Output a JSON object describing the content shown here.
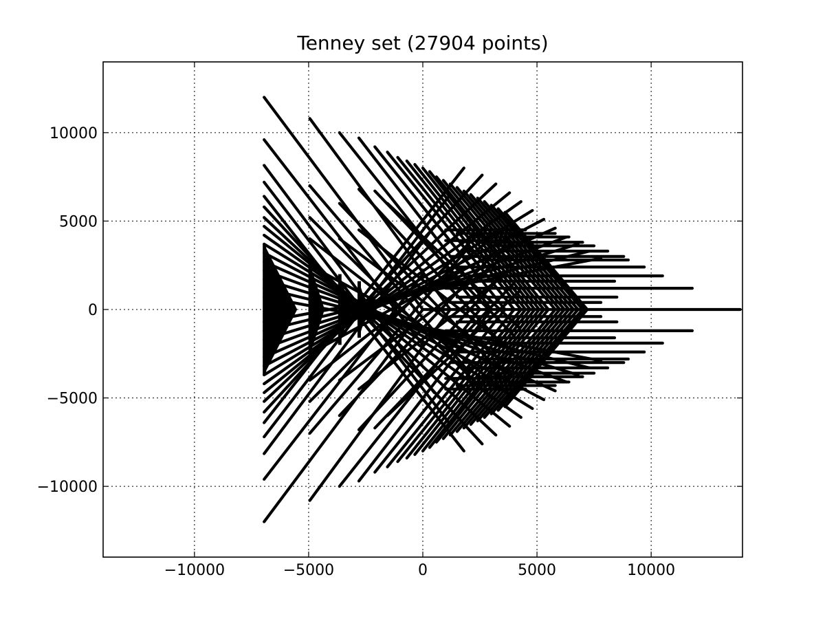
{
  "chart_data": {
    "type": "scatter",
    "title": "Tenney set (27904 points)",
    "xlabel": "",
    "ylabel": "",
    "xlim": [
      -14000,
      14000
    ],
    "ylim": [
      -14000,
      14000
    ],
    "xticks": [
      -10000,
      -5000,
      0,
      5000,
      10000
    ],
    "yticks": [
      -10000,
      -5000,
      0,
      5000,
      10000
    ],
    "xtick_labels": [
      "−10000",
      "−5000",
      "0",
      "5000",
      "10000"
    ],
    "ytick_labels": [
      "−10000",
      "−5000",
      "0",
      "5000",
      "10000"
    ],
    "grid": true,
    "marker_color": "#000000",
    "spine_color": "#000000",
    "segments": [
      {
        "x1": -6950,
        "y1": 12000,
        "x2": 0,
        "y2": 0
      },
      {
        "x1": -6950,
        "y1": -12000,
        "x2": 0,
        "y2": 0
      },
      {
        "x1": -6950,
        "y1": 9600,
        "x2": 0,
        "y2": -2000
      },
      {
        "x1": -6950,
        "y1": -9600,
        "x2": 0,
        "y2": 2000
      },
      {
        "x1": -6950,
        "y1": 8150,
        "x2": 500,
        "y2": -4700
      },
      {
        "x1": -6950,
        "y1": -8150,
        "x2": 500,
        "y2": 4700
      },
      {
        "x1": -6950,
        "y1": 7200,
        "x2": 1200,
        "y2": -6500
      },
      {
        "x1": -6950,
        "y1": -7200,
        "x2": 1200,
        "y2": 6500
      },
      {
        "x1": -6950,
        "y1": 6400,
        "x2": 1800,
        "y2": -8000
      },
      {
        "x1": -6950,
        "y1": -6400,
        "x2": 1800,
        "y2": 8000
      },
      {
        "x1": -6950,
        "y1": 5800,
        "x2": 2600,
        "y2": -7600
      },
      {
        "x1": -6950,
        "y1": -5800,
        "x2": 2600,
        "y2": 7600
      },
      {
        "x1": -6950,
        "y1": 5200,
        "x2": 3200,
        "y2": -7100
      },
      {
        "x1": -6950,
        "y1": -5200,
        "x2": 3200,
        "y2": 7100
      },
      {
        "x1": -6950,
        "y1": 4700,
        "x2": 3800,
        "y2": -6600
      },
      {
        "x1": -6950,
        "y1": -4700,
        "x2": 3800,
        "y2": 6600
      },
      {
        "x1": -6950,
        "y1": 4200,
        "x2": 4300,
        "y2": -6100
      },
      {
        "x1": -6950,
        "y1": -4200,
        "x2": 4300,
        "y2": 6100
      },
      {
        "x1": -6950,
        "y1": 3700,
        "x2": 4800,
        "y2": -5600
      },
      {
        "x1": -6950,
        "y1": -3700,
        "x2": 4800,
        "y2": 5600
      },
      {
        "x1": -6950,
        "y1": 3200,
        "x2": 5300,
        "y2": -5100
      },
      {
        "x1": -6950,
        "y1": -3200,
        "x2": 5300,
        "y2": 5100
      },
      {
        "x1": -6950,
        "y1": 2700,
        "x2": 5800,
        "y2": -4600
      },
      {
        "x1": -6950,
        "y1": -2700,
        "x2": 5800,
        "y2": 4600
      },
      {
        "x1": -6950,
        "y1": 2200,
        "x2": 6300,
        "y2": -4100
      },
      {
        "x1": -6950,
        "y1": -2200,
        "x2": 6300,
        "y2": 4100
      },
      {
        "x1": -6950,
        "y1": 1700,
        "x2": 6800,
        "y2": -3700
      },
      {
        "x1": -6950,
        "y1": -1700,
        "x2": 6800,
        "y2": 3700
      },
      {
        "x1": -6950,
        "y1": 1200,
        "x2": 7300,
        "y2": -3300
      },
      {
        "x1": -6950,
        "y1": -1200,
        "x2": 7300,
        "y2": 3300
      },
      {
        "x1": -6950,
        "y1": 700,
        "x2": 7800,
        "y2": -2900
      },
      {
        "x1": -6950,
        "y1": -700,
        "x2": 7800,
        "y2": 2900
      },
      {
        "x1": -4950,
        "y1": 10800,
        "x2": 1200,
        "y2": 0
      },
      {
        "x1": -4950,
        "y1": -10800,
        "x2": 1200,
        "y2": 0
      },
      {
        "x1": -4950,
        "y1": 7000,
        "x2": 2000,
        "y2": -3500
      },
      {
        "x1": -4950,
        "y1": -7000,
        "x2": 2000,
        "y2": 3500
      },
      {
        "x1": -4950,
        "y1": 5200,
        "x2": 3000,
        "y2": -5000
      },
      {
        "x1": -4950,
        "y1": -5200,
        "x2": 3000,
        "y2": 5000
      },
      {
        "x1": -4950,
        "y1": 4000,
        "x2": 3500,
        "y2": -4500
      },
      {
        "x1": -4950,
        "y1": -4000,
        "x2": 3500,
        "y2": 4500
      },
      {
        "x1": -4950,
        "y1": 2500,
        "x2": 4000,
        "y2": -3800
      },
      {
        "x1": -4950,
        "y1": -2500,
        "x2": 4000,
        "y2": 3800
      },
      {
        "x1": -3650,
        "y1": 10000,
        "x2": 2500,
        "y2": 0
      },
      {
        "x1": -3650,
        "y1": -10000,
        "x2": 2500,
        "y2": 0
      },
      {
        "x1": -3650,
        "y1": 6000,
        "x2": 3000,
        "y2": -3000
      },
      {
        "x1": -3650,
        "y1": -6000,
        "x2": 3000,
        "y2": 3000
      },
      {
        "x1": -3650,
        "y1": 4000,
        "x2": 3600,
        "y2": -3000
      },
      {
        "x1": -3650,
        "y1": -4000,
        "x2": 3600,
        "y2": 3000
      },
      {
        "x1": -2800,
        "y1": 9700,
        "x2": 3000,
        "y2": 0
      },
      {
        "x1": -2800,
        "y1": -9700,
        "x2": 3000,
        "y2": 0
      },
      {
        "x1": -2800,
        "y1": 6800,
        "x2": 3500,
        "y2": -2000
      },
      {
        "x1": -2800,
        "y1": -6800,
        "x2": 3500,
        "y2": 2000
      },
      {
        "x1": -2800,
        "y1": 4500,
        "x2": 3800,
        "y2": -2200
      },
      {
        "x1": -2800,
        "y1": -4500,
        "x2": 3800,
        "y2": 2200
      },
      {
        "x1": -2100,
        "y1": 9200,
        "x2": 3600,
        "y2": 0
      },
      {
        "x1": -2100,
        "y1": -9200,
        "x2": 3600,
        "y2": 0
      },
      {
        "x1": -2100,
        "y1": 6700,
        "x2": 4000,
        "y2": -1500
      },
      {
        "x1": -2100,
        "y1": -6700,
        "x2": 4000,
        "y2": 1500
      },
      {
        "x1": -1550,
        "y1": 8900,
        "x2": 4000,
        "y2": 0
      },
      {
        "x1": -1550,
        "y1": -8900,
        "x2": 4000,
        "y2": 0
      },
      {
        "x1": -1550,
        "y1": 6000,
        "x2": 4200,
        "y2": -1000
      },
      {
        "x1": -1550,
        "y1": -6000,
        "x2": 4200,
        "y2": 1000
      },
      {
        "x1": -1100,
        "y1": 8600,
        "x2": 4300,
        "y2": 0
      },
      {
        "x1": -1100,
        "y1": -8600,
        "x2": 4300,
        "y2": 0
      },
      {
        "x1": -700,
        "y1": 8400,
        "x2": 4500,
        "y2": 0
      },
      {
        "x1": -700,
        "y1": -8400,
        "x2": 4500,
        "y2": 0
      },
      {
        "x1": -350,
        "y1": 8200,
        "x2": 4700,
        "y2": 0
      },
      {
        "x1": -350,
        "y1": -8200,
        "x2": 4700,
        "y2": 0
      },
      {
        "x1": 0,
        "y1": 8000,
        "x2": 4900,
        "y2": 0
      },
      {
        "x1": 0,
        "y1": -8000,
        "x2": 4900,
        "y2": 0
      },
      {
        "x1": 300,
        "y1": 7800,
        "x2": 5100,
        "y2": 0
      },
      {
        "x1": 300,
        "y1": -7800,
        "x2": 5100,
        "y2": 0
      },
      {
        "x1": 600,
        "y1": 7500,
        "x2": 5300,
        "y2": 0
      },
      {
        "x1": 600,
        "y1": -7500,
        "x2": 5300,
        "y2": 0
      },
      {
        "x1": 900,
        "y1": 7300,
        "x2": 5500,
        "y2": 0
      },
      {
        "x1": 900,
        "y1": -7300,
        "x2": 5500,
        "y2": 0
      },
      {
        "x1": 1200,
        "y1": 7100,
        "x2": 5800,
        "y2": 0
      },
      {
        "x1": 1200,
        "y1": -7100,
        "x2": 5800,
        "y2": 0
      },
      {
        "x1": 1500,
        "y1": 6900,
        "x2": 6000,
        "y2": 0
      },
      {
        "x1": 1500,
        "y1": -6900,
        "x2": 6000,
        "y2": 0
      },
      {
        "x1": 1800,
        "y1": 6700,
        "x2": 6200,
        "y2": 0
      },
      {
        "x1": 1800,
        "y1": -6700,
        "x2": 6200,
        "y2": 0
      },
      {
        "x1": 2100,
        "y1": 6500,
        "x2": 6400,
        "y2": 0
      },
      {
        "x1": 2100,
        "y1": -6500,
        "x2": 6400,
        "y2": 0
      },
      {
        "x1": 2400,
        "y1": 6300,
        "x2": 6600,
        "y2": 0
      },
      {
        "x1": 2400,
        "y1": -6300,
        "x2": 6600,
        "y2": 0
      },
      {
        "x1": 2700,
        "y1": 6100,
        "x2": 6800,
        "y2": 0
      },
      {
        "x1": 2700,
        "y1": -6100,
        "x2": 6800,
        "y2": 0
      },
      {
        "x1": 3000,
        "y1": 5900,
        "x2": 7000,
        "y2": 0
      },
      {
        "x1": 3000,
        "y1": -5900,
        "x2": 7000,
        "y2": 0
      },
      {
        "x1": 3300,
        "y1": 5700,
        "x2": 7100,
        "y2": 0
      },
      {
        "x1": 3300,
        "y1": -5700,
        "x2": 7100,
        "y2": 0
      },
      {
        "x1": 3600,
        "y1": 5500,
        "x2": 7200,
        "y2": 0
      },
      {
        "x1": 3600,
        "y1": -5500,
        "x2": 7200,
        "y2": 0
      },
      {
        "x1": 1000,
        "y1": 4500,
        "x2": 4500,
        "y2": 4500
      },
      {
        "x1": 1000,
        "y1": -4500,
        "x2": 4500,
        "y2": -4500
      },
      {
        "x1": 1000,
        "y1": 3900,
        "x2": 3800,
        "y2": 3900
      },
      {
        "x1": 1000,
        "y1": -3900,
        "x2": 3800,
        "y2": -3900
      },
      {
        "x1": 1500,
        "y1": 4300,
        "x2": 5800,
        "y2": 4300
      },
      {
        "x1": 1500,
        "y1": -4300,
        "x2": 5800,
        "y2": -4300
      },
      {
        "x1": 2000,
        "y1": 4100,
        "x2": 6400,
        "y2": 4100
      },
      {
        "x1": 2000,
        "y1": -4100,
        "x2": 6400,
        "y2": -4100
      },
      {
        "x1": 2500,
        "y1": 3800,
        "x2": 7000,
        "y2": 3800
      },
      {
        "x1": 2500,
        "y1": -3800,
        "x2": 7000,
        "y2": -3800
      },
      {
        "x1": 3000,
        "y1": 3600,
        "x2": 7500,
        "y2": 3600
      },
      {
        "x1": 3000,
        "y1": -3600,
        "x2": 7500,
        "y2": -3600
      },
      {
        "x1": 1800,
        "y1": 3300,
        "x2": 8100,
        "y2": 3300
      },
      {
        "x1": 1800,
        "y1": -3300,
        "x2": 8100,
        "y2": -3300
      },
      {
        "x1": 1200,
        "y1": 3000,
        "x2": 8800,
        "y2": 3000
      },
      {
        "x1": 1200,
        "y1": -3000,
        "x2": 8800,
        "y2": -3000
      },
      {
        "x1": 2500,
        "y1": 2800,
        "x2": 9000,
        "y2": 2800
      },
      {
        "x1": 2500,
        "y1": -2800,
        "x2": 9000,
        "y2": -2800
      },
      {
        "x1": 1500,
        "y1": 2400,
        "x2": 9700,
        "y2": 2400
      },
      {
        "x1": 1500,
        "y1": -2400,
        "x2": 9700,
        "y2": -2400
      },
      {
        "x1": 2000,
        "y1": 1900,
        "x2": 10500,
        "y2": 1900
      },
      {
        "x1": 2000,
        "y1": -1900,
        "x2": 10500,
        "y2": -1900
      },
      {
        "x1": 2400,
        "y1": 1600,
        "x2": 8400,
        "y2": 1600
      },
      {
        "x1": 2400,
        "y1": -1600,
        "x2": 8400,
        "y2": -1600
      },
      {
        "x1": 1000,
        "y1": 1200,
        "x2": 11800,
        "y2": 1200
      },
      {
        "x1": 1000,
        "y1": -1200,
        "x2": 11800,
        "y2": -1200
      },
      {
        "x1": 1500,
        "y1": 700,
        "x2": 8500,
        "y2": 700
      },
      {
        "x1": 1500,
        "y1": -700,
        "x2": 8500,
        "y2": -700
      },
      {
        "x1": 1200,
        "y1": 400,
        "x2": 7800,
        "y2": 400
      },
      {
        "x1": 1200,
        "y1": -400,
        "x2": 7800,
        "y2": -400
      },
      {
        "x1": 0,
        "y1": 0,
        "x2": 13900,
        "y2": 0
      }
    ],
    "dense_regions": [
      {
        "x1": -6950,
        "x2": -5500,
        "y_top": 3700,
        "y_bot": -3700
      },
      {
        "x1": -4950,
        "x2": -4300,
        "y_top": 2600,
        "y_bot": -2600
      },
      {
        "x1": -3650,
        "x2": -3150,
        "y_top": 2000,
        "y_bot": -2000
      },
      {
        "x1": -2800,
        "x2": -2400,
        "y_top": 1600,
        "y_bot": -1600
      }
    ]
  }
}
